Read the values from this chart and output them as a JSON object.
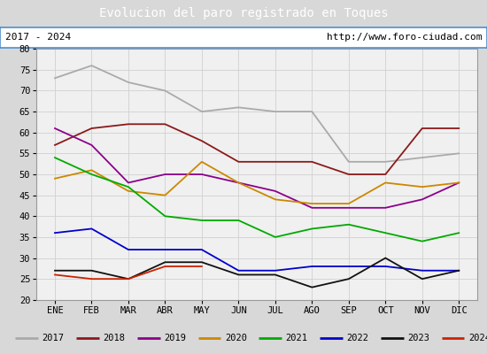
{
  "title": "Evolucion del paro registrado en Toques",
  "title_color": "#ffffff",
  "title_bg": "#4d8fcc",
  "subtitle_left": "2017 - 2024",
  "subtitle_right": "http://www.foro-ciudad.com",
  "months": [
    "ENE",
    "FEB",
    "MAR",
    "ABR",
    "MAY",
    "JUN",
    "JUL",
    "AGO",
    "SEP",
    "OCT",
    "NOV",
    "DIC"
  ],
  "ylim": [
    20,
    80
  ],
  "yticks": [
    20,
    25,
    30,
    35,
    40,
    45,
    50,
    55,
    60,
    65,
    70,
    75,
    80
  ],
  "bg_color": "#ffffff",
  "outer_bg": "#d8d8d8",
  "series": {
    "2017": {
      "color": "#aaaaaa",
      "values": [
        73,
        76,
        72,
        70,
        65,
        66,
        65,
        65,
        53,
        53,
        54,
        55
      ]
    },
    "2018": {
      "color": "#8b1a1a",
      "values": [
        57,
        61,
        62,
        62,
        58,
        53,
        53,
        53,
        50,
        50,
        61,
        61
      ]
    },
    "2019": {
      "color": "#8b008b",
      "values": [
        61,
        57,
        48,
        50,
        50,
        48,
        46,
        42,
        42,
        42,
        44,
        48
      ]
    },
    "2020": {
      "color": "#cc8800",
      "values": [
        49,
        51,
        46,
        45,
        53,
        48,
        44,
        43,
        43,
        48,
        47,
        48
      ]
    },
    "2021": {
      "color": "#00aa00",
      "values": [
        54,
        50,
        47,
        40,
        39,
        39,
        35,
        37,
        38,
        36,
        34,
        36
      ]
    },
    "2022": {
      "color": "#0000cc",
      "values": [
        36,
        37,
        32,
        32,
        32,
        27,
        27,
        28,
        28,
        28,
        27,
        27
      ]
    },
    "2023": {
      "color": "#111111",
      "values": [
        27,
        27,
        25,
        29,
        29,
        26,
        26,
        23,
        25,
        30,
        25,
        27
      ]
    },
    "2024": {
      "color": "#cc2200",
      "values": [
        26,
        25,
        25,
        28,
        28,
        null,
        null,
        null,
        null,
        null,
        null,
        null
      ]
    }
  }
}
